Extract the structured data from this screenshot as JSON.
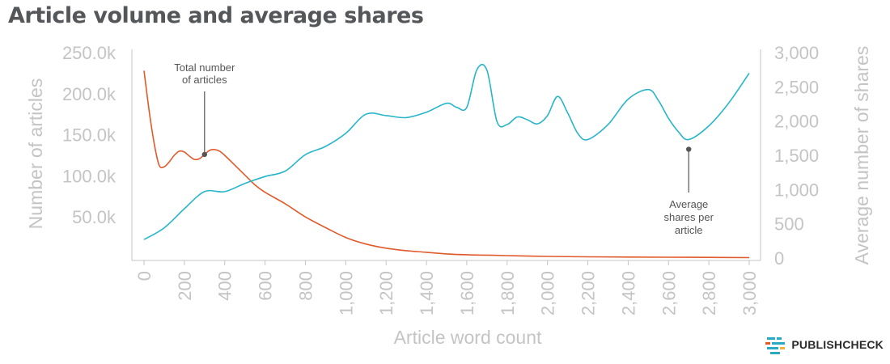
{
  "title": "Article volume and average shares",
  "brand": {
    "name": "PUBLISHCHECK",
    "logo_icon": "publishcheck-logo-icon"
  },
  "colors": {
    "articles": "#e05a2b",
    "shares": "#27b5c9",
    "axis": "#c4c4c4",
    "title": "#54565a"
  },
  "chart_data": {
    "type": "line",
    "title": "Article volume and average shares",
    "xlabel": "Article word count",
    "ylabel_left": "Number of articles",
    "ylabel_right": "Average number of shares",
    "xlim": [
      0,
      3000
    ],
    "ylim_left": [
      0,
      250000
    ],
    "ylim_right": [
      0,
      3000
    ],
    "x_ticks": [
      "0",
      "200",
      "400",
      "600",
      "800",
      "1,000",
      "1,200",
      "1,400",
      "1,600",
      "1,800",
      "2,000",
      "2,200",
      "2,400",
      "2,600",
      "2,800",
      "3,000"
    ],
    "y_ticks_left": [
      "50.0k",
      "100.0k",
      "150.0k",
      "200.0k",
      "250.0k"
    ],
    "y_ticks_right": [
      "0",
      "500",
      "1,000",
      "1,500",
      "2,000",
      "2,500",
      "3,000"
    ],
    "grid": false,
    "series": [
      {
        "name": "Number of articles",
        "axis": "left",
        "color": "#e05a2b",
        "x": [
          0,
          25,
          50,
          75,
          100,
          125,
          150,
          175,
          200,
          225,
          250,
          275,
          300,
          325,
          350,
          375,
          400,
          450,
          500,
          550,
          600,
          700,
          800,
          900,
          1000,
          1100,
          1200,
          1300,
          1400,
          1500,
          1600,
          1700,
          1800,
          2000,
          2200,
          2400,
          2600,
          2800,
          3000
        ],
        "y": [
          228000,
          180000,
          140000,
          113000,
          111000,
          117000,
          125000,
          130000,
          129000,
          124000,
          120000,
          121000,
          126000,
          131000,
          132000,
          130000,
          125000,
          113000,
          101000,
          89000,
          80000,
          66000,
          50000,
          37000,
          25000,
          17000,
          12000,
          9000,
          7000,
          5000,
          4000,
          3500,
          3000,
          2000,
          1500,
          1200,
          1000,
          800,
          500
        ]
      },
      {
        "name": "Average shares per article",
        "axis": "right",
        "color": "#27b5c9",
        "x": [
          0,
          100,
          200,
          300,
          400,
          500,
          600,
          700,
          800,
          900,
          1000,
          1100,
          1200,
          1300,
          1400,
          1500,
          1550,
          1600,
          1650,
          1700,
          1750,
          1800,
          1850,
          1900,
          1950,
          2000,
          2050,
          2100,
          2150,
          2200,
          2300,
          2400,
          2500,
          2550,
          2600,
          2650,
          2700,
          2800,
          2900,
          3000
        ],
        "y": [
          270,
          440,
          720,
          970,
          970,
          1090,
          1190,
          1270,
          1510,
          1630,
          1820,
          2100,
          2080,
          2050,
          2130,
          2260,
          2200,
          2200,
          2750,
          2740,
          1990,
          1950,
          2060,
          2020,
          1960,
          2080,
          2360,
          2120,
          1820,
          1730,
          1950,
          2320,
          2460,
          2300,
          2040,
          1840,
          1730,
          1930,
          2270,
          2700
        ]
      }
    ],
    "annotations": [
      {
        "lines": [
          "Total number",
          "of articles"
        ],
        "series": "Number of articles",
        "x": 300
      },
      {
        "lines": [
          "Average",
          "shares per",
          "article"
        ],
        "series": "Average shares per article",
        "x": 2700
      }
    ]
  }
}
